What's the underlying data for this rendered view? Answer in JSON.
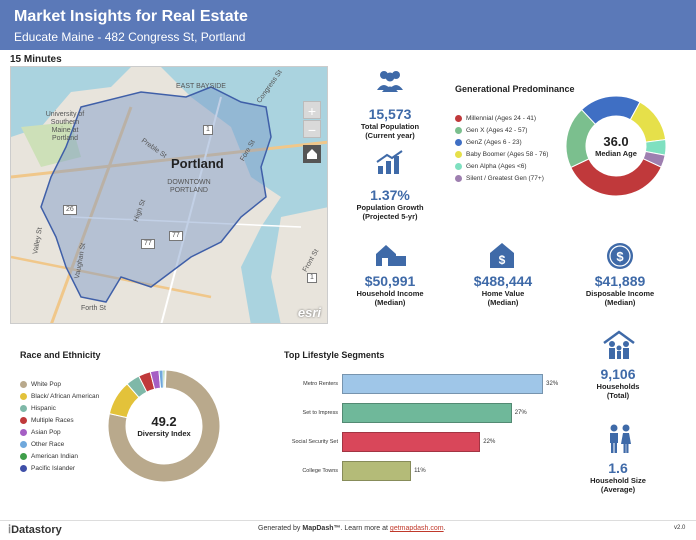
{
  "header": {
    "title": "Market Insights for Real Estate",
    "subtitle": "Educate Maine - 482 Congress St, Portland"
  },
  "map": {
    "label": "15 Minutes",
    "city": "Portland",
    "neighborhoods": [
      "EAST BAYSIDE",
      "DOWNTOWN\nPORTLAND"
    ],
    "places": [
      "University of Southern Maine at Portland"
    ],
    "streets": [
      "Congress St",
      "Preble St",
      "High St",
      "Fore St",
      "Valley St",
      "Vaughan St",
      "Front St",
      "Forth St"
    ],
    "routes": [
      "1",
      "26",
      "77",
      "77",
      "1"
    ],
    "zoom_in": "+",
    "zoom_out": "−",
    "attribution": "esri"
  },
  "stats": {
    "population": {
      "value": "15,573",
      "label": "Total Population",
      "sub": "(Current year)"
    },
    "growth": {
      "value": "1.37%",
      "label": "Population Growth",
      "sub": "(Projected 5-yr)"
    },
    "income": {
      "value": "$50,991",
      "label": "Household Income",
      "sub": "(Median)"
    },
    "home_value": {
      "value": "$488,444",
      "label": "Home Value",
      "sub": "(Median)"
    },
    "disposable": {
      "value": "$41,889",
      "label": "Disposable Income",
      "sub": "(Median)"
    },
    "households": {
      "value": "9,106",
      "label": "Households",
      "sub": "(Total)"
    },
    "household_size": {
      "value": "1.6",
      "label": "Household Size",
      "sub": "(Average)"
    }
  },
  "generational": {
    "title": "Generational Predominance",
    "center_value": "36.0",
    "center_label": "Median Age",
    "items": [
      {
        "label": "Millennial (Ages 24 - 41)",
        "color": "#c0393b"
      },
      {
        "label": "Gen X (Ages 42 - 57)",
        "color": "#7bbf8e"
      },
      {
        "label": "GenZ (Ages 6 - 23)",
        "color": "#3f6fc4"
      },
      {
        "label": "Baby Boomer (Ages 58 - 76)",
        "color": "#e6e04a"
      },
      {
        "label": "Gen Alpha (Ages <6)",
        "color": "#7fe0c0"
      },
      {
        "label": "Silent / Greatest Gen (77+)",
        "color": "#9e7fb0"
      }
    ]
  },
  "chart_data": [
    {
      "type": "pie",
      "title": "Generational Predominance",
      "categories": [
        "Millennial (Ages 24 - 41)",
        "Gen X (Ages 42 - 57)",
        "GenZ (Ages 6 - 23)",
        "Baby Boomer (Ages 58 - 76)",
        "Gen Alpha (Ages <6)",
        "Silent / Greatest Gen (77+)"
      ],
      "values": [
        36,
        20,
        20,
        15,
        5,
        4
      ]
    },
    {
      "type": "pie",
      "title": "Race and Ethnicity",
      "categories": [
        "White Pop",
        "Black/ African American",
        "Hispanic",
        "Multiple Races",
        "Asian Pop",
        "Other Race",
        "American Indian",
        "Pacific Islander"
      ],
      "values": [
        78,
        10,
        4,
        3.5,
        2.5,
        1.2,
        0.5,
        0.3
      ]
    },
    {
      "type": "bar",
      "title": "Top Lifestyle Segments",
      "categories": [
        "Metro Renters",
        "Set to Impress",
        "Social Security Set",
        "College Towns"
      ],
      "values": [
        32,
        27,
        22,
        11
      ]
    }
  ],
  "race": {
    "title": "Race and Ethnicity",
    "center_value": "49.2",
    "center_label": "Diversity Index",
    "items": [
      {
        "label": "White Pop",
        "color": "#b9a98c"
      },
      {
        "label": "Black/ African American",
        "color": "#e3c23a"
      },
      {
        "label": "Hispanic",
        "color": "#7fb8a8"
      },
      {
        "label": "Multiple Races",
        "color": "#c0393b"
      },
      {
        "label": "Asian Pop",
        "color": "#a55fc4"
      },
      {
        "label": "Other Race",
        "color": "#6fa8dc"
      },
      {
        "label": "American Indian",
        "color": "#3f9e4a"
      },
      {
        "label": "Pacific Islander",
        "color": "#3f4fa8"
      }
    ]
  },
  "lifestyle": {
    "title": "Top Lifestyle Segments",
    "colors": [
      "#9fc6e8",
      "#6fb89a",
      "#d9475a",
      "#b4bb78"
    ],
    "pct_labels": [
      "32%",
      "27%",
      "22%",
      "11%"
    ]
  },
  "footer": {
    "brand": "Datastory",
    "generated_prefix": "Generated by ",
    "generated_brand": "MapDash™",
    "learn_more": ". Learn more at ",
    "link": "getmapdash.com",
    "link_suffix": ".",
    "version": "v2.0"
  }
}
